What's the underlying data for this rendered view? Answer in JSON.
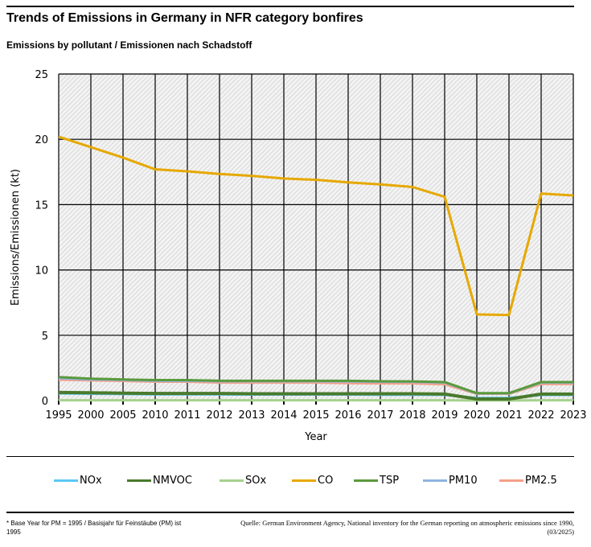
{
  "header": {
    "title": "Trends of Emissions in Germany in NFR category bonfires",
    "subtitle": "Emissions by pollutant / Emissionen nach Schadstoff"
  },
  "chart_data": {
    "type": "line",
    "title": "Trends of Emissions in Germany in NFR category bonfires",
    "subtitle": "Emissions by pollutant / Emissionen nach Schadstoff",
    "xlabel": "Year",
    "ylabel": "Emissions/Emissionen (kt)",
    "ylim": [
      0,
      25
    ],
    "yticks": [
      0,
      5,
      10,
      15,
      20,
      25
    ],
    "grid": true,
    "legend_position": "bottom",
    "categories": [
      "1995",
      "2000",
      "2005",
      "2010",
      "2011",
      "2012",
      "2013",
      "2014",
      "2015",
      "2016",
      "2017",
      "2018",
      "2019",
      "2020",
      "2021",
      "2022",
      "2023"
    ],
    "series": [
      {
        "name": "NOx",
        "color": "#5bc8f5",
        "values": [
          0.55,
          0.52,
          0.5,
          0.48,
          0.48,
          0.47,
          0.46,
          0.46,
          0.46,
          0.46,
          0.45,
          0.45,
          0.44,
          0.2,
          0.2,
          0.43,
          0.43
        ]
      },
      {
        "name": "NMVOC",
        "color": "#4a7a2c",
        "values": [
          0.62,
          0.6,
          0.57,
          0.55,
          0.55,
          0.55,
          0.52,
          0.52,
          0.52,
          0.52,
          0.52,
          0.52,
          0.5,
          0.12,
          0.12,
          0.5,
          0.5
        ]
      },
      {
        "name": "SOx",
        "color": "#a6d18f",
        "values": [
          0.02,
          0.02,
          0.02,
          0.02,
          0.02,
          0.02,
          0.02,
          0.02,
          0.02,
          0.02,
          0.02,
          0.02,
          0.02,
          0.01,
          0.01,
          0.02,
          0.02
        ]
      },
      {
        "name": "CO",
        "color": "#e6a800",
        "values": [
          20.2,
          19.4,
          18.6,
          17.7,
          17.55,
          17.35,
          17.2,
          17.0,
          16.9,
          16.7,
          16.55,
          16.35,
          15.6,
          6.6,
          6.55,
          15.85,
          15.7
        ]
      },
      {
        "name": "TSP",
        "color": "#5a9a3c",
        "values": [
          1.8,
          1.68,
          1.62,
          1.57,
          1.57,
          1.52,
          1.52,
          1.52,
          1.52,
          1.52,
          1.48,
          1.47,
          1.42,
          0.57,
          0.57,
          1.42,
          1.42
        ]
      },
      {
        "name": "PM10",
        "color": "#8fb4e0",
        "values": [
          1.72,
          1.62,
          1.58,
          1.52,
          1.52,
          1.48,
          1.48,
          1.48,
          1.48,
          1.46,
          1.44,
          1.43,
          1.38,
          0.55,
          0.55,
          1.38,
          1.38
        ]
      },
      {
        "name": "PM2.5",
        "color": "#f4a08a",
        "values": [
          1.6,
          1.55,
          1.5,
          1.45,
          1.45,
          1.38,
          1.38,
          1.38,
          1.38,
          1.33,
          1.32,
          1.32,
          1.25,
          0.52,
          0.52,
          1.27,
          1.27
        ]
      }
    ]
  },
  "footer": {
    "footnote": "* Base Year for PM = 1995 / Basisjahr für Feinstäube (PM) ist 1995",
    "source": "Quelle: German Environment Agency, National inventory for the German reporting on atmospheric emissions since 1990, (03/2025)"
  }
}
